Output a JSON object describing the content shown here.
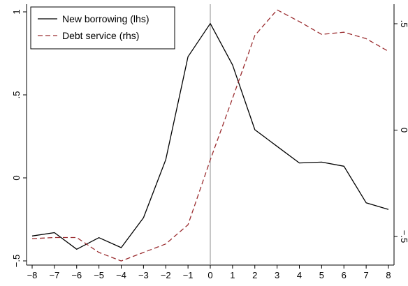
{
  "chart_data": {
    "type": "line",
    "title": "",
    "xlabel": "",
    "ylabel_left": "",
    "ylabel_right": "",
    "x": [
      -8,
      -7,
      -6,
      -5,
      -4,
      -3,
      -2,
      -1,
      0,
      1,
      2,
      3,
      4,
      5,
      6,
      7,
      8
    ],
    "xlim": [
      -8,
      8
    ],
    "x_ticks": [
      "−8",
      "−7",
      "−6",
      "−5",
      "−4",
      "−3",
      "−2",
      "−1",
      "0",
      "1",
      "2",
      "3",
      "4",
      "5",
      "6",
      "7",
      "8"
    ],
    "ylim_left": [
      -0.5,
      1.0
    ],
    "ylim_right": [
      -0.5,
      0.5
    ],
    "y_ticks_left": [
      {
        "value": -0.5,
        "label": "−.5"
      },
      {
        "value": 0,
        "label": "0"
      },
      {
        "value": 0.5,
        "label": ".5"
      },
      {
        "value": 1,
        "label": "1"
      }
    ],
    "y_ticks_right": [
      {
        "value": -0.5,
        "label": "−.5"
      },
      {
        "value": 0,
        "label": "0"
      },
      {
        "value": 0.5,
        "label": ".5"
      }
    ],
    "vertical_reference_line_x": 0,
    "grid": false,
    "legend_position": "top-left",
    "series": [
      {
        "name": "New borrowing (lhs)",
        "axis": "left",
        "style": "solid",
        "color": "#000000",
        "values": [
          -0.35,
          -0.33,
          -0.43,
          -0.36,
          -0.42,
          -0.24,
          0.11,
          0.73,
          0.93,
          0.68,
          0.29,
          0.19,
          0.09,
          0.095,
          0.07,
          -0.15,
          -0.19
        ]
      },
      {
        "name": "Debt service (rhs)",
        "axis": "right",
        "style": "dashed",
        "color": "#9b2d30",
        "values": [
          -0.51,
          -0.505,
          -0.505,
          -0.575,
          -0.615,
          -0.575,
          -0.535,
          -0.445,
          -0.14,
          0.15,
          0.445,
          0.565,
          0.51,
          0.45,
          0.46,
          0.43,
          0.37
        ]
      }
    ]
  }
}
